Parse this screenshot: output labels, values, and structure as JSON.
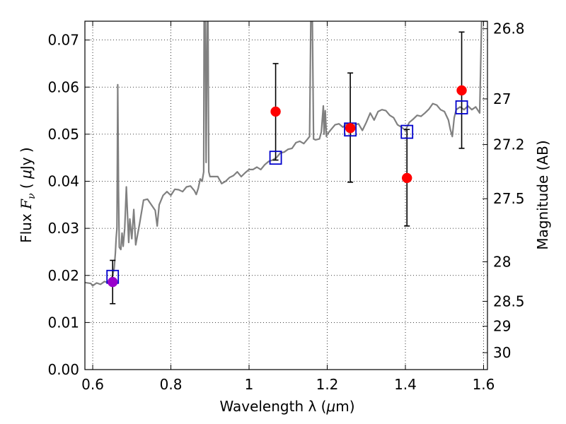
{
  "chart_data": {
    "type": "scatter",
    "x_axis": {
      "label_prefix": "Wavelength  λ (",
      "label_mu": "μ",
      "label_suffix": "m)",
      "range": [
        0.58,
        1.61
      ],
      "ticks": [
        0.6,
        0.8,
        1.0,
        1.2,
        1.4,
        1.6
      ],
      "tick_labels": [
        "0.6",
        "0.8",
        "1",
        "1.2",
        "1.4",
        "1.6"
      ]
    },
    "y_axis_left": {
      "label_prefix": "Flux  ",
      "label_symbol": "F",
      "label_sub": "ν",
      "label_mid": "  (  ",
      "label_mu": "μ",
      "label_suffix": "Jy  )",
      "range": [
        0.0,
        0.074
      ],
      "ticks": [
        0.0,
        0.01,
        0.02,
        0.03,
        0.04,
        0.05,
        0.06,
        0.07
      ],
      "tick_labels": [
        "0.00",
        "0.01",
        "0.02",
        "0.03",
        "0.04",
        "0.05",
        "0.06",
        "0.07"
      ]
    },
    "y_axis_right": {
      "label": "Magnitude (AB)",
      "ticks": [
        {
          "flux": 0.0724,
          "label": "26.8"
        },
        {
          "flux": 0.0575,
          "label": "27"
        },
        {
          "flux": 0.0478,
          "label": "27.2"
        },
        {
          "flux": 0.0363,
          "label": "27.5"
        },
        {
          "flux": 0.0229,
          "label": "28"
        },
        {
          "flux": 0.0145,
          "label": "28.5"
        },
        {
          "flux": 0.0092,
          "label": "29"
        },
        {
          "flux": 0.0036,
          "label": "30"
        }
      ]
    },
    "grid": true,
    "series": [
      {
        "style": "line",
        "color": "#808080",
        "points": [
          [
            0.58,
            0.0185
          ],
          [
            0.595,
            0.0183
          ],
          [
            0.6,
            0.0178
          ],
          [
            0.61,
            0.0184
          ],
          [
            0.62,
            0.0181
          ],
          [
            0.63,
            0.0187
          ],
          [
            0.64,
            0.0185
          ],
          [
            0.645,
            0.019
          ],
          [
            0.65,
            0.0198
          ],
          [
            0.655,
            0.0215
          ],
          [
            0.658,
            0.0248
          ],
          [
            0.66,
            0.028
          ],
          [
            0.662,
            0.03
          ],
          [
            0.663,
            0.045
          ],
          [
            0.664,
            0.0605
          ],
          [
            0.666,
            0.038
          ],
          [
            0.668,
            0.026
          ],
          [
            0.672,
            0.0255
          ],
          [
            0.675,
            0.029
          ],
          [
            0.678,
            0.0262
          ],
          [
            0.682,
            0.03
          ],
          [
            0.686,
            0.0388
          ],
          [
            0.689,
            0.033
          ],
          [
            0.692,
            0.027
          ],
          [
            0.695,
            0.032
          ],
          [
            0.7,
            0.0278
          ],
          [
            0.705,
            0.034
          ],
          [
            0.71,
            0.0265
          ],
          [
            0.72,
            0.031
          ],
          [
            0.73,
            0.036
          ],
          [
            0.74,
            0.0362
          ],
          [
            0.75,
            0.035
          ],
          [
            0.76,
            0.0338
          ],
          [
            0.765,
            0.0305
          ],
          [
            0.77,
            0.035
          ],
          [
            0.78,
            0.037
          ],
          [
            0.79,
            0.0378
          ],
          [
            0.8,
            0.037
          ],
          [
            0.81,
            0.0383
          ],
          [
            0.82,
            0.0382
          ],
          [
            0.83,
            0.0378
          ],
          [
            0.84,
            0.0388
          ],
          [
            0.85,
            0.039
          ],
          [
            0.86,
            0.038
          ],
          [
            0.865,
            0.0372
          ],
          [
            0.87,
            0.0385
          ],
          [
            0.875,
            0.0405
          ],
          [
            0.88,
            0.04
          ],
          [
            0.884,
            0.042
          ],
          [
            0.885,
            0.074
          ],
          [
            0.888,
            0.074
          ],
          [
            0.89,
            0.044
          ],
          [
            0.893,
            0.074
          ],
          [
            0.895,
            0.074
          ],
          [
            0.897,
            0.042
          ],
          [
            0.9,
            0.041
          ],
          [
            0.92,
            0.041
          ],
          [
            0.93,
            0.0395
          ],
          [
            0.94,
            0.04
          ],
          [
            0.95,
            0.0408
          ],
          [
            0.96,
            0.0412
          ],
          [
            0.97,
            0.042
          ],
          [
            0.98,
            0.041
          ],
          [
            0.99,
            0.0418
          ],
          [
            1.0,
            0.0425
          ],
          [
            1.01,
            0.0425
          ],
          [
            1.02,
            0.043
          ],
          [
            1.03,
            0.0425
          ],
          [
            1.04,
            0.0435
          ],
          [
            1.05,
            0.0442
          ],
          [
            1.06,
            0.0445
          ],
          [
            1.07,
            0.045
          ],
          [
            1.08,
            0.046
          ],
          [
            1.09,
            0.0462
          ],
          [
            1.1,
            0.0468
          ],
          [
            1.11,
            0.047
          ],
          [
            1.12,
            0.0482
          ],
          [
            1.13,
            0.0485
          ],
          [
            1.14,
            0.048
          ],
          [
            1.15,
            0.049
          ],
          [
            1.155,
            0.0495
          ],
          [
            1.158,
            0.074
          ],
          [
            1.162,
            0.074
          ],
          [
            1.165,
            0.049
          ],
          [
            1.17,
            0.0488
          ],
          [
            1.18,
            0.049
          ],
          [
            1.185,
            0.0505
          ],
          [
            1.19,
            0.056
          ],
          [
            1.192,
            0.05
          ],
          [
            1.195,
            0.055
          ],
          [
            1.198,
            0.0495
          ],
          [
            1.2,
            0.05
          ],
          [
            1.21,
            0.051
          ],
          [
            1.22,
            0.052
          ],
          [
            1.23,
            0.0522
          ],
          [
            1.24,
            0.0515
          ],
          [
            1.25,
            0.0522
          ],
          [
            1.26,
            0.0515
          ],
          [
            1.27,
            0.052
          ],
          [
            1.28,
            0.0522
          ],
          [
            1.29,
            0.0508
          ],
          [
            1.3,
            0.0525
          ],
          [
            1.31,
            0.0545
          ],
          [
            1.32,
            0.053
          ],
          [
            1.33,
            0.0548
          ],
          [
            1.34,
            0.0552
          ],
          [
            1.35,
            0.055
          ],
          [
            1.36,
            0.054
          ],
          [
            1.37,
            0.0535
          ],
          [
            1.38,
            0.052
          ],
          [
            1.39,
            0.0515
          ],
          [
            1.4,
            0.0508
          ],
          [
            1.41,
            0.0525
          ],
          [
            1.42,
            0.0532
          ],
          [
            1.43,
            0.054
          ],
          [
            1.44,
            0.0538
          ],
          [
            1.45,
            0.0545
          ],
          [
            1.46,
            0.0553
          ],
          [
            1.47,
            0.0565
          ],
          [
            1.48,
            0.0562
          ],
          [
            1.49,
            0.0552
          ],
          [
            1.5,
            0.0548
          ],
          [
            1.51,
            0.053
          ],
          [
            1.515,
            0.051
          ],
          [
            1.52,
            0.0495
          ],
          [
            1.525,
            0.0535
          ],
          [
            1.53,
            0.0552
          ],
          [
            1.54,
            0.0558
          ],
          [
            1.55,
            0.0552
          ],
          [
            1.56,
            0.056
          ],
          [
            1.57,
            0.0552
          ],
          [
            1.58,
            0.0558
          ],
          [
            1.59,
            0.0545
          ],
          [
            1.595,
            0.074
          ],
          [
            1.61,
            0.074
          ]
        ]
      },
      {
        "style": "errorbars",
        "color": "#000000",
        "points": [
          {
            "x": 0.651,
            "low": 0.014,
            "high": 0.0232
          },
          {
            "x": 1.068,
            "low": 0.0445,
            "high": 0.065
          },
          {
            "x": 1.259,
            "low": 0.0398,
            "high": 0.063
          },
          {
            "x": 1.404,
            "low": 0.0305,
            "high": 0.051
          },
          {
            "x": 1.544,
            "low": 0.047,
            "high": 0.0717
          }
        ]
      },
      {
        "style": "open-squares",
        "color": "#0000cc",
        "points": [
          [
            0.651,
            0.0197
          ],
          [
            1.068,
            0.045
          ],
          [
            1.259,
            0.051
          ],
          [
            1.404,
            0.0505
          ],
          [
            1.544,
            0.0557
          ]
        ]
      },
      {
        "style": "filled-circles",
        "color": "#ff0000",
        "points": [
          [
            1.068,
            0.0548
          ],
          [
            1.259,
            0.0513
          ],
          [
            1.404,
            0.0407
          ],
          [
            1.544,
            0.0593
          ]
        ]
      },
      {
        "style": "filled-circles",
        "color": "#9900cc",
        "points": [
          [
            0.651,
            0.0186
          ]
        ]
      }
    ]
  }
}
